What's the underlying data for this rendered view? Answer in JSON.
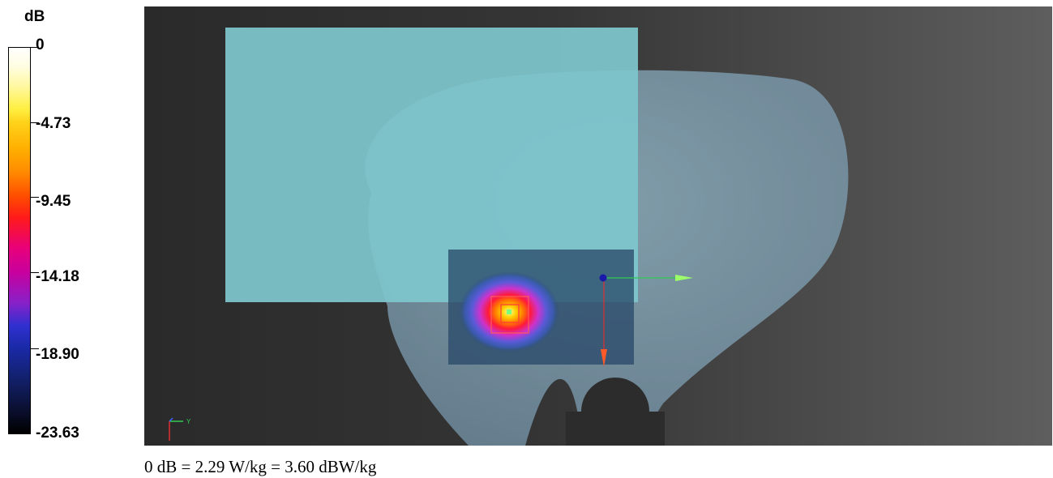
{
  "legend": {
    "unit": "dB",
    "ticks": [
      "0",
      "-4.73",
      "-9.45",
      "-14.18",
      "-18.90",
      "-23.63"
    ]
  },
  "axis_triad": {
    "y_label": "Y"
  },
  "caption": "0 dB = 2.29 W/kg = 3.60 dBW/kg",
  "colors": {
    "phantom": "#8fb3c9",
    "scan_area": "#7ec6cc",
    "zoom_area": "#2a4a6a",
    "x_axis": "#33cc55",
    "z_axis": "#e03030",
    "origin": "#1a1aaa"
  }
}
